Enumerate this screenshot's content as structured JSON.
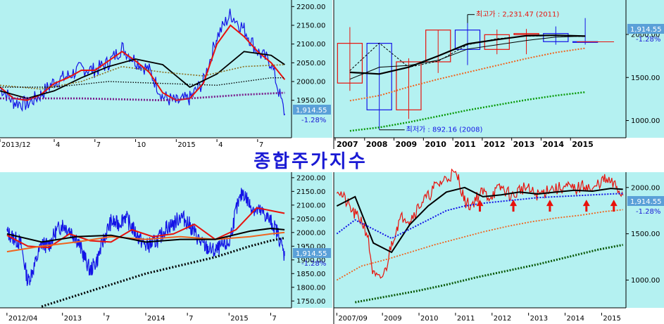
{
  "title": "종합주가지수",
  "chart_data": [
    {
      "id": "daily",
      "type": "line",
      "ylim": [
        1850,
        2210
      ],
      "ytick_labels": [
        "2200.00",
        "2150.00",
        "2100.00",
        "2050.00",
        "2000.00",
        "1950.00"
      ],
      "yticks": [
        2200,
        2150,
        2100,
        2050,
        2000,
        1950
      ],
      "x_labels": [
        "2013/12",
        "4",
        "7",
        "10",
        "2015",
        "4",
        "7"
      ],
      "x_label_positions": [
        0,
        4,
        7,
        10,
        13,
        16,
        19
      ],
      "x_range": [
        0,
        21.5
      ],
      "last_value": "1,914.55",
      "change": "-1.28%",
      "series": [
        {
          "x": [
            0,
            1,
            2,
            3,
            4,
            5,
            6,
            7,
            8,
            9,
            10,
            11,
            12,
            13,
            14,
            15,
            16,
            17,
            18,
            19,
            20,
            21
          ],
          "values": [
            1985,
            1945,
            1940,
            1965,
            2000,
            2015,
            2035,
            2030,
            2050,
            2090,
            2055,
            2030,
            1960,
            1945,
            1955,
            2000,
            2120,
            2180,
            2140,
            2080,
            2050,
            1914
          ]
        },
        {
          "x": [
            0,
            1,
            2,
            3,
            4,
            5,
            6,
            7,
            8,
            9,
            10,
            11,
            12,
            13,
            14,
            15,
            16,
            17,
            18,
            19,
            20,
            21
          ],
          "values": [
            1985,
            1955,
            1950,
            1965,
            1995,
            2010,
            2030,
            2030,
            2055,
            2080,
            2055,
            2025,
            1970,
            1950,
            1955,
            1995,
            2100,
            2150,
            2120,
            2080,
            2050,
            2005
          ]
        },
        {
          "x": [
            0,
            2,
            4,
            6,
            8,
            10,
            12,
            14,
            16,
            18,
            20,
            21
          ],
          "values": [
            1975,
            1955,
            1975,
            2010,
            2040,
            2060,
            2045,
            1985,
            2020,
            2080,
            2070,
            2045
          ]
        },
        {
          "x": [
            0,
            3,
            6,
            9,
            12,
            15,
            18,
            21
          ],
          "values": [
            1990,
            1980,
            2000,
            2040,
            2025,
            2015,
            2040,
            2045
          ]
        },
        {
          "x": [
            0,
            4,
            8,
            12,
            16,
            20,
            21
          ],
          "values": [
            1985,
            1985,
            2000,
            1995,
            1990,
            2010,
            2010
          ]
        },
        {
          "x": [
            0,
            6,
            12,
            18,
            21
          ],
          "values": [
            1955,
            1955,
            1950,
            1965,
            1970
          ]
        }
      ]
    },
    {
      "id": "yearly",
      "type": "candlestick",
      "ylim": [
        800,
        2400
      ],
      "ytick_labels": [
        "2000.00",
        "1500.00",
        "1000.00"
      ],
      "yticks": [
        2000,
        1500,
        1000
      ],
      "categories": [
        "2007",
        "2008",
        "2009",
        "2010",
        "2011",
        "2012",
        "2013",
        "2014",
        "2015"
      ],
      "last_value": "1,914.55",
      "change": "-1.28%",
      "annotation_high": "최고가 : 2,231.47 (2011)",
      "annotation_low": "최저가 : 892.16 (2008)",
      "candles": [
        {
          "open": 1435,
          "close": 1897,
          "high": 2085,
          "low": 1345
        },
        {
          "open": 1897,
          "close": 1124,
          "high": 1901,
          "low": 892
        },
        {
          "open": 1124,
          "close": 1682,
          "high": 1723,
          "low": 1018
        },
        {
          "open": 1682,
          "close": 2051,
          "high": 2052,
          "low": 1552
        },
        {
          "open": 2051,
          "close": 1826,
          "high": 2231,
          "low": 1644
        },
        {
          "open": 1826,
          "close": 1997,
          "high": 2057,
          "low": 1770
        },
        {
          "open": 1997,
          "close": 2011,
          "high": 2064,
          "low": 1770
        },
        {
          "open": 2011,
          "close": 1916,
          "high": 2093,
          "low": 1881
        },
        {
          "open": 1916,
          "close": 1914,
          "high": 2190,
          "low": 1882
        }
      ],
      "ma_lines": [
        {
          "values": [
            1560,
            1540,
            1620,
            1750,
            1890,
            1940,
            1985,
            1990,
            1980
          ]
        },
        {
          "values": [
            1580,
            1900,
            1620,
            1690,
            1880,
            1950,
            1980,
            1985,
            1975
          ]
        },
        {
          "values": [
            1480,
            1620,
            1640,
            1700,
            1830,
            1880,
            1930,
            1970,
            1980
          ]
        },
        {
          "values": [
            1230,
            1290,
            1390,
            1480,
            1560,
            1640,
            1720,
            1790,
            1840
          ]
        },
        {
          "values": [
            880,
            920,
            980,
            1050,
            1120,
            1180,
            1240,
            1290,
            1330
          ]
        }
      ]
    },
    {
      "id": "weekly",
      "type": "line",
      "ylim": [
        1725,
        2215
      ],
      "ytick_labels": [
        "2200.00",
        "2150.00",
        "2100.00",
        "2050.00",
        "2000.00",
        "1950.00",
        "1900.00",
        "1850.00",
        "1800.00",
        "1750.00"
      ],
      "yticks": [
        2200,
        2150,
        2100,
        2050,
        2000,
        1950,
        1900,
        1850,
        1800,
        1750
      ],
      "x_labels": [
        "2012/04",
        "2013",
        "7",
        "2014",
        "7",
        "2015",
        "7"
      ],
      "x_label_positions": [
        0,
        8,
        14,
        20,
        26,
        32,
        38
      ],
      "x_range": [
        -1,
        41
      ],
      "last_value": "1,914.55",
      "change": "-1.28%",
      "series": [
        {
          "x": [
            0,
            1,
            2,
            3,
            4,
            5,
            6,
            7,
            8,
            9,
            10,
            11,
            12,
            13,
            14,
            15,
            16,
            17,
            18,
            19,
            20,
            21,
            22,
            23,
            24,
            25,
            26,
            27,
            28,
            29,
            30,
            31,
            32,
            33,
            34,
            35,
            36,
            37,
            38,
            39,
            40
          ],
          "values": [
            2000,
            1980,
            1960,
            1820,
            1880,
            1960,
            1950,
            2000,
            2030,
            2010,
            1980,
            1920,
            1860,
            1900,
            1980,
            2040,
            2030,
            2060,
            2020,
            1980,
            1950,
            1960,
            1980,
            2020,
            2030,
            2060,
            2040,
            2000,
            1960,
            1940,
            1930,
            1950,
            1960,
            2080,
            2150,
            2100,
            2080,
            2070,
            2040,
            2000,
            1915
          ]
        },
        {
          "x": [
            0,
            3,
            6,
            9,
            12,
            15,
            18,
            21,
            24,
            27,
            30,
            33,
            36,
            38,
            40
          ],
          "values": [
            1990,
            1950,
            1945,
            1995,
            1970,
            1965,
            2010,
            1985,
            1995,
            2030,
            1975,
            2010,
            2090,
            2080,
            2070
          ]
        },
        {
          "x": [
            0,
            5,
            10,
            15,
            20,
            25,
            30,
            35,
            38,
            40
          ],
          "values": [
            1930,
            1950,
            1965,
            1985,
            1975,
            1985,
            1975,
            1985,
            1995,
            2000
          ]
        },
        {
          "x": [
            0,
            5,
            10,
            15,
            20,
            25,
            30,
            35,
            38,
            40
          ],
          "values": [
            1995,
            1965,
            1985,
            1990,
            1965,
            1975,
            1975,
            2005,
            2015,
            2010
          ]
        },
        {
          "x": [
            5,
            10,
            15,
            20,
            25,
            30,
            35,
            38,
            40
          ],
          "values": [
            1730,
            1770,
            1810,
            1850,
            1880,
            1910,
            1950,
            1970,
            1980
          ]
        }
      ]
    },
    {
      "id": "monthly",
      "type": "line",
      "ylim": [
        700,
        2150
      ],
      "ytick_labels": [
        "2000.00",
        "1500.00",
        "1000.00"
      ],
      "yticks": [
        2000,
        1500,
        1000
      ],
      "x_labels": [
        "2007/09",
        "2009",
        "2010",
        "2011",
        "2012",
        "2013",
        "2014",
        "2015"
      ],
      "x_label_positions": [
        0,
        15,
        27,
        39,
        51,
        63,
        75,
        87
      ],
      "x_range": [
        -1,
        95
      ],
      "last_value": "1,914.55",
      "change": "-1.28%",
      "arrow_positions": [
        47,
        58,
        70,
        82,
        91
      ],
      "series": [
        {
          "x": [
            0,
            2,
            4,
            6,
            8,
            10,
            12,
            14,
            16,
            18,
            20,
            22,
            24,
            26,
            28,
            30,
            32,
            34,
            36,
            38,
            40,
            42,
            44,
            46,
            48,
            50,
            52,
            54,
            56,
            58,
            60,
            62,
            64,
            66,
            68,
            70,
            72,
            74,
            76,
            78,
            80,
            82,
            84,
            86,
            88,
            90,
            92,
            94
          ],
          "values": [
            2000,
            1900,
            1800,
            1700,
            1650,
            1500,
            1050,
            1000,
            1100,
            1400,
            1600,
            1700,
            1650,
            1750,
            1850,
            1900,
            2000,
            2050,
            2100,
            2150,
            2100,
            1850,
            1800,
            1900,
            1950,
            1900,
            1950,
            2000,
            1950,
            1900,
            1980,
            2000,
            1950,
            1920,
            1950,
            2000,
            1980,
            2000,
            2000,
            1980,
            2000,
            2030,
            1950,
            2050,
            2080,
            2050,
            2000,
            1915
          ]
        },
        {
          "x": [
            0,
            6,
            12,
            18,
            24,
            30,
            36,
            42,
            48,
            54,
            60,
            66,
            72,
            78,
            84,
            90,
            94
          ],
          "values": [
            1800,
            1900,
            1400,
            1300,
            1600,
            1800,
            1950,
            2000,
            1900,
            1920,
            1950,
            1930,
            1950,
            1970,
            1960,
            1990,
            1980
          ]
        },
        {
          "x": [
            0,
            6,
            12,
            18,
            24,
            30,
            36,
            42,
            48,
            54,
            60,
            66,
            72,
            78,
            84,
            90,
            94
          ],
          "values": [
            1500,
            1650,
            1550,
            1450,
            1550,
            1650,
            1750,
            1800,
            1830,
            1850,
            1870,
            1890,
            1900,
            1910,
            1920,
            1930,
            1935
          ]
        },
        {
          "x": [
            0,
            8,
            16,
            24,
            32,
            40,
            48,
            56,
            64,
            72,
            80,
            88,
            94
          ],
          "values": [
            1000,
            1150,
            1220,
            1300,
            1380,
            1450,
            1520,
            1580,
            1630,
            1670,
            1700,
            1740,
            1760
          ]
        },
        {
          "x": [
            6,
            16,
            26,
            36,
            46,
            56,
            66,
            76,
            86,
            94
          ],
          "values": [
            760,
            820,
            880,
            950,
            1030,
            1100,
            1170,
            1250,
            1330,
            1380
          ]
        }
      ]
    }
  ],
  "colors": {
    "bg": "#b4f1f1",
    "axis_panel": "#ffffff",
    "badge": "#5aa0d8",
    "red": "#e8120c",
    "blue": "#1414e6",
    "black": "#000000",
    "orange": "#f0641e",
    "green": "#0a9a0a",
    "purple": "#7a1e8c",
    "olive": "#8a6d1e",
    "darkgreen": "#0a5a0a"
  }
}
